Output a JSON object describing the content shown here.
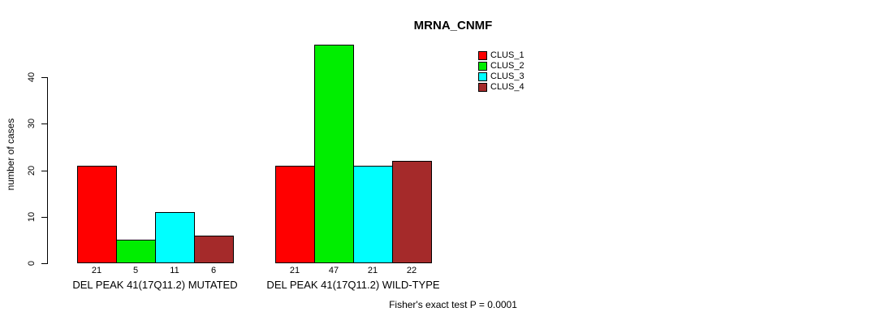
{
  "figure": {
    "background": "#ffffff",
    "axis_color": "#000000",
    "bar_border_color": "#000000"
  },
  "chart_data": {
    "type": "bar",
    "title": "MRNA_CNMF",
    "xlabel": "",
    "ylabel": "number of cases",
    "ylim": [
      0,
      40
    ],
    "yticks": [
      0,
      10,
      20,
      30,
      40
    ],
    "grid": false,
    "legend_position": "top-right",
    "categories": [
      "DEL PEAK 41(17Q11.2) MUTATED",
      "DEL PEAK 41(17Q11.2) WILD-TYPE"
    ],
    "series": [
      {
        "name": "CLUS_1",
        "color": "#FF0000",
        "values": [
          21,
          21
        ]
      },
      {
        "name": "CLUS_2",
        "color": "#00EE00",
        "values": [
          5,
          47
        ]
      },
      {
        "name": "CLUS_3",
        "color": "#00FFFF",
        "values": [
          11,
          21
        ]
      },
      {
        "name": "CLUS_4",
        "color": "#A52A2A",
        "values": [
          6,
          22
        ]
      }
    ],
    "annotation": "Fisher's exact test P = 0.0001"
  }
}
